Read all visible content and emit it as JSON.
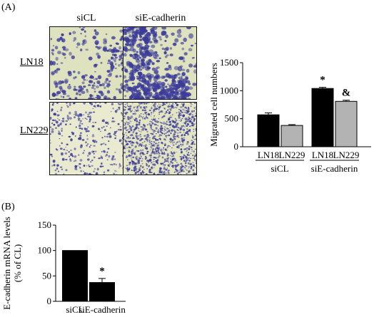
{
  "panel_a": {
    "label": "(A)",
    "images": {
      "col_labels": [
        "siCL",
        "siE-cadherin"
      ],
      "row_labels": [
        "LN18",
        "LN229"
      ]
    }
  },
  "panel_b": {
    "label": "(B)"
  },
  "colors": {
    "black_bar": "#000000",
    "gray_bar": "#b3b3b3",
    "stain": "#3b3b9a",
    "background_stain": "#e6e7c8"
  },
  "chart_data": [
    {
      "type": "bar",
      "ylabel": "Migrated cell numbers",
      "ylim": [
        0,
        1500
      ],
      "yticks": [
        0,
        500,
        1000,
        1500
      ],
      "categories": [
        "LN18",
        "LN229",
        "LN18",
        "LN229"
      ],
      "groups": [
        {
          "label": "siCL",
          "categories": [
            "LN18",
            "LN229"
          ]
        },
        {
          "label": "siE-cadherin",
          "categories": [
            "LN18",
            "LN229"
          ]
        }
      ],
      "values": [
        570,
        380,
        1040,
        810
      ],
      "errors": [
        35,
        15,
        20,
        20
      ],
      "bar_colors": [
        "black",
        "gray",
        "black",
        "gray"
      ],
      "annotations": [
        "",
        "",
        "*",
        "&"
      ]
    },
    {
      "type": "bar",
      "ylabel": "E-cadherin mRNA levels (% of CL)",
      "ylim": [
        0,
        150
      ],
      "yticks": [
        0,
        50,
        100,
        150
      ],
      "categories": [
        "siCL",
        "siE-cadherin"
      ],
      "values": [
        100,
        37
      ],
      "errors": [
        0,
        8
      ],
      "bar_colors": [
        "black",
        "black"
      ],
      "annotations": [
        "",
        "*"
      ]
    }
  ]
}
